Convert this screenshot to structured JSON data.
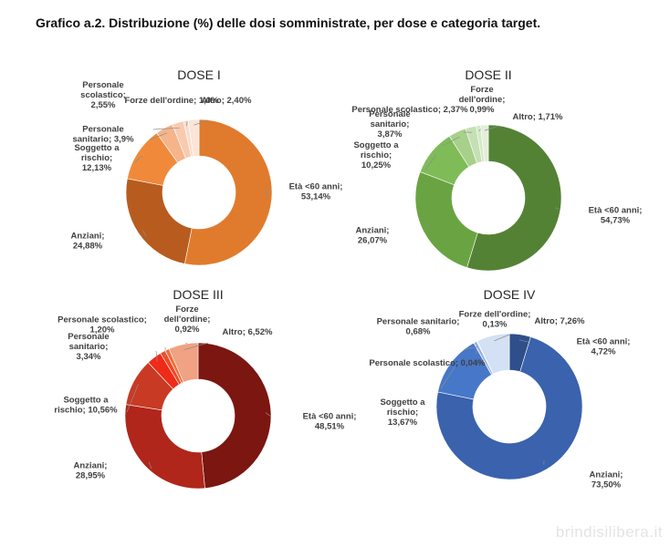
{
  "title": "Grafico a.2. Distribuzione (%) delle dosi somministrate, per dose e categoria target.",
  "watermark": "brindisilibera.it",
  "chart_data": [
    {
      "type": "pie",
      "title": "DOSE I",
      "slices": [
        {
          "name": "Età <60 anni",
          "value": 53.14,
          "label": [
            "Età <60 anni;",
            "53,14%"
          ],
          "color": "#e07b2d"
        },
        {
          "name": "Anziani",
          "value": 24.88,
          "label": [
            "Anziani;",
            "24,88%"
          ],
          "color": "#b75c1e"
        },
        {
          "name": "Soggetto a rischio",
          "value": 12.13,
          "label": [
            "Soggetto a",
            "rischio;",
            "12,13%"
          ],
          "color": "#f08a3a"
        },
        {
          "name": "Personale sanitario",
          "value": 3.9,
          "label": [
            "Personale",
            "sanitario; 3,9%"
          ],
          "color": "#f5b48a"
        },
        {
          "name": "Personale scolastico",
          "value": 2.55,
          "label": [
            "Personale",
            "scolastico;",
            "2,55%"
          ],
          "color": "#f8cbb0"
        },
        {
          "name": "Forze dell'ordine",
          "value": 1.0,
          "label": [
            "Forze dell'ordine; 1,0%"
          ],
          "color": "#fadccb"
        },
        {
          "name": "Altro",
          "value": 2.4,
          "label": [
            "Altro; 2,40%"
          ],
          "color": "#fbe5d8"
        }
      ]
    },
    {
      "type": "pie",
      "title": "DOSE II",
      "slices": [
        {
          "name": "Età <60 anni",
          "value": 54.73,
          "label": [
            "Età <60 anni;",
            "54,73%"
          ],
          "color": "#548235"
        },
        {
          "name": "Anziani",
          "value": 26.07,
          "label": [
            "Anziani;",
            "26,07%"
          ],
          "color": "#6aa442"
        },
        {
          "name": "Soggetto a rischio",
          "value": 10.25,
          "label": [
            "Soggetto a",
            "rischio;",
            "10,25%"
          ],
          "color": "#7fbb57"
        },
        {
          "name": "Personale sanitario",
          "value": 3.87,
          "label": [
            "Personale",
            "sanitario;",
            "3,87%"
          ],
          "color": "#a7d08a"
        },
        {
          "name": "Personale scolastico",
          "value": 2.37,
          "label": [
            "Personale scolastico; 2,37%"
          ],
          "color": "#c5e0b4"
        },
        {
          "name": "Forze dell'ordine",
          "value": 0.99,
          "label": [
            "Forze",
            "dell'ordine;",
            "0,99%"
          ],
          "color": "#d5e8c7"
        },
        {
          "name": "Altro",
          "value": 1.71,
          "label": [
            "Altro; 1,71%"
          ],
          "color": "#e2efd9"
        }
      ]
    },
    {
      "type": "pie",
      "title": "DOSE III",
      "slices": [
        {
          "name": "Età <60 anni",
          "value": 48.51,
          "label": [
            "Età <60 anni;",
            "48,51%"
          ],
          "color": "#7b1610"
        },
        {
          "name": "Anziani",
          "value": 28.95,
          "label": [
            "Anziani;",
            "28,95%"
          ],
          "color": "#b0261a"
        },
        {
          "name": "Soggetto a rischio",
          "value": 10.56,
          "label": [
            "Soggetto a",
            "rischio; 10,56%"
          ],
          "color": "#c83a24"
        },
        {
          "name": "Personale sanitario",
          "value": 3.34,
          "label": [
            "Personale",
            "sanitario;",
            "3,34%"
          ],
          "color": "#ee2b18"
        },
        {
          "name": "Personale scolastico",
          "value": 1.2,
          "label": [
            "Personale scolastico;",
            "1,20%"
          ],
          "color": "#f04a28"
        },
        {
          "name": "Forze dell'ordine",
          "value": 0.92,
          "label": [
            "Forze",
            "dell'ordine;",
            "0,92%"
          ],
          "color": "#f26d3a"
        },
        {
          "name": "Altro",
          "value": 6.52,
          "label": [
            "Altro; 6,52%"
          ],
          "color": "#f0a282"
        }
      ]
    },
    {
      "type": "pie",
      "title": "DOSE IV",
      "slices": [
        {
          "name": "Età <60 anni",
          "value": 4.72,
          "label": [
            "Età <60 anni;",
            "4,72%"
          ],
          "color": "#2e4f8a"
        },
        {
          "name": "Anziani",
          "value": 73.5,
          "label": [
            "Anziani;",
            "73,50%"
          ],
          "color": "#3a62ad"
        },
        {
          "name": "Soggetto a rischio",
          "value": 13.67,
          "label": [
            "Soggetto a",
            "rischio;",
            "13,67%"
          ],
          "color": "#4777c8"
        },
        {
          "name": "Personale scolastico",
          "value": 0.04,
          "label": [
            "Personale scolastico; 0,04%"
          ],
          "color": "#6a93d4"
        },
        {
          "name": "Personale sanitario",
          "value": 0.68,
          "label": [
            "Personale sanitario;",
            "0,68%"
          ],
          "color": "#8fb0e0"
        },
        {
          "name": "Forze dell'ordine",
          "value": 0.13,
          "label": [
            "Forze dell'ordine;",
            "0,13%"
          ],
          "color": "#b6cbec"
        },
        {
          "name": "Altro",
          "value": 7.26,
          "label": [
            "Altro; 7,26%"
          ],
          "color": "#d4e0f3"
        }
      ]
    }
  ]
}
